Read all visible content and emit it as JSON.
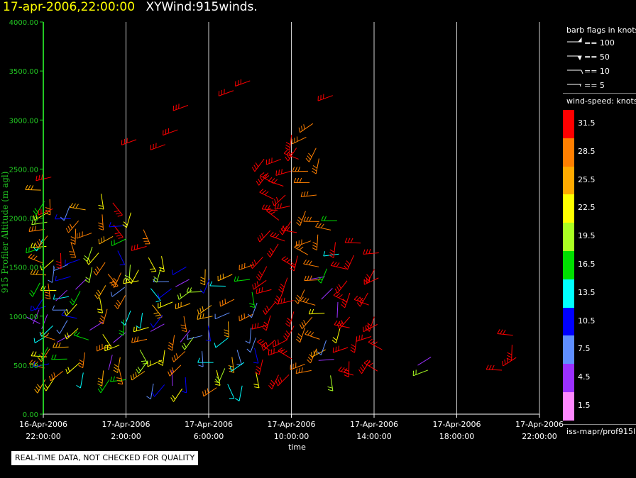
{
  "header": {
    "timestamp": "17-apr-2006,22:00:00",
    "product": "XYWind:915winds."
  },
  "chart_data": {
    "type": "scatter",
    "subtype": "wind-barb time-height profile",
    "xlabel": "time",
    "ylabel": "915 Profiler Altitude (m agl)",
    "ylim": [
      0,
      4000
    ],
    "y_ticks": [
      "0.00",
      "500.00",
      "1000.00",
      "1500.00",
      "2000.00",
      "2500.00",
      "3000.00",
      "3500.00",
      "4000.00"
    ],
    "x_ticks": [
      {
        "date": "16-Apr-2006",
        "time": "22:00:00"
      },
      {
        "date": "17-Apr-2006",
        "time": "2:00:00"
      },
      {
        "date": "17-Apr-2006",
        "time": "6:00:00"
      },
      {
        "date": "17-Apr-2006",
        "time": "10:00:00"
      },
      {
        "date": "17-Apr-2006",
        "time": "14:00:00"
      },
      {
        "date": "17-Apr-2006",
        "time": "18:00:00"
      },
      {
        "date": "17-Apr-2006",
        "time": "22:00:00"
      }
    ],
    "x_range_hours": [
      0,
      24
    ],
    "grid": "vertical lines every 4 hours",
    "profiles": [
      {
        "hour": 0.1,
        "alt_min": 350,
        "alt_max": 2450,
        "speed": 10.5,
        "dir": 240
      },
      {
        "hour": 0.5,
        "alt_min": 400,
        "alt_max": 2200,
        "speed": 19.5,
        "dir": 230
      },
      {
        "hour": 1.2,
        "alt_min": 450,
        "alt_max": 2150,
        "speed": 13.5,
        "dir": 220
      },
      {
        "hour": 2.0,
        "alt_min": 400,
        "alt_max": 2100,
        "speed": 16.5,
        "dir": 240
      },
      {
        "hour": 3.0,
        "alt_min": 350,
        "alt_max": 2300,
        "speed": 10.5,
        "dir": 200
      },
      {
        "hour": 4.0,
        "alt_min": 350,
        "alt_max": 2050,
        "speed": 13.5,
        "dir": 210
      },
      {
        "hour": 5.0,
        "alt_min": 300,
        "alt_max": 1900,
        "speed": 10.5,
        "dir": 200
      },
      {
        "hour": 6.0,
        "alt_min": 300,
        "alt_max": 1700,
        "speed": 16.5,
        "dir": 210
      },
      {
        "hour": 7.0,
        "alt_min": 280,
        "alt_max": 1550,
        "speed": 19.5,
        "dir": 215
      },
      {
        "hour": 8.0,
        "alt_min": 300,
        "alt_max": 1500,
        "speed": 22.5,
        "dir": 220
      },
      {
        "hour": 9.0,
        "alt_min": 320,
        "alt_max": 1450,
        "speed": 16.5,
        "dir": 215
      },
      {
        "hour": 10.0,
        "alt_min": 300,
        "alt_max": 1550,
        "speed": 13.5,
        "dir": 210
      },
      {
        "hour": 11.0,
        "alt_min": 420,
        "alt_max": 2600,
        "speed": 31.5,
        "dir": 250
      },
      {
        "hour": 12.0,
        "alt_min": 420,
        "alt_max": 2900,
        "speed": 31.5,
        "dir": 245
      },
      {
        "hour": 13.0,
        "alt_min": 420,
        "alt_max": 3050,
        "speed": 28.5,
        "dir": 240
      },
      {
        "hour": 14.0,
        "alt_min": 420,
        "alt_max": 2000,
        "speed": 25.5,
        "dir": 230
      },
      {
        "hour": 15.0,
        "alt_min": 420,
        "alt_max": 1850,
        "speed": 31.5,
        "dir": 240
      },
      {
        "hour": 16.0,
        "alt_min": 420,
        "alt_max": 1700,
        "speed": 31.5,
        "dir": 245
      },
      {
        "hour": 19.0,
        "alt_min": 450,
        "alt_max": 600,
        "speed": 25.5,
        "dir": 240
      },
      {
        "hour": 22.5,
        "alt_min": 450,
        "alt_max": 850,
        "speed": 31.5,
        "dir": 240
      }
    ],
    "upper_points": [
      {
        "hour": 5.9,
        "alt": 2750,
        "speed": 31.5
      },
      {
        "hour": 7.0,
        "alt": 3150,
        "speed": 31.5
      },
      {
        "hour": 9.2,
        "alt": 3300,
        "speed": 31.5
      },
      {
        "hour": 10.0,
        "alt": 3400,
        "speed": 31.5
      },
      {
        "hour": 4.5,
        "alt": 2800,
        "speed": 31.5
      },
      {
        "hour": 6.5,
        "alt": 2900,
        "speed": 31.5
      },
      {
        "hour": 11.5,
        "alt": 2600,
        "speed": 31.5
      },
      {
        "hour": 14.0,
        "alt": 3250,
        "speed": 31.5
      }
    ]
  },
  "legend": {
    "flags_title": "barb flags in knots",
    "flags": [
      {
        "label": "== 100"
      },
      {
        "label": "== 50"
      },
      {
        "label": "== 10"
      },
      {
        "label": "== 5"
      }
    ],
    "speed_title": "wind-speed: knots",
    "speed_bins": [
      {
        "label": "31.5",
        "color": "#ff0000"
      },
      {
        "label": "28.5",
        "color": "#ff7f00"
      },
      {
        "label": "25.5",
        "color": "#ffaa00"
      },
      {
        "label": "22.5",
        "color": "#ffff00"
      },
      {
        "label": "19.5",
        "color": "#aaff22"
      },
      {
        "label": "16.5",
        "color": "#00e000"
      },
      {
        "label": "13.5",
        "color": "#00ffff"
      },
      {
        "label": "10.5",
        "color": "#0000ff"
      },
      {
        "label": "7.5",
        "color": "#5f8fff"
      },
      {
        "label": "4.5",
        "color": "#9b30ff"
      },
      {
        "label": "1.5",
        "color": "#ff88ff"
      }
    ]
  },
  "source_label": "iss-mapr/prof915l",
  "qc_note": "REAL-TIME DATA, NOT CHECKED FOR QUALITY"
}
